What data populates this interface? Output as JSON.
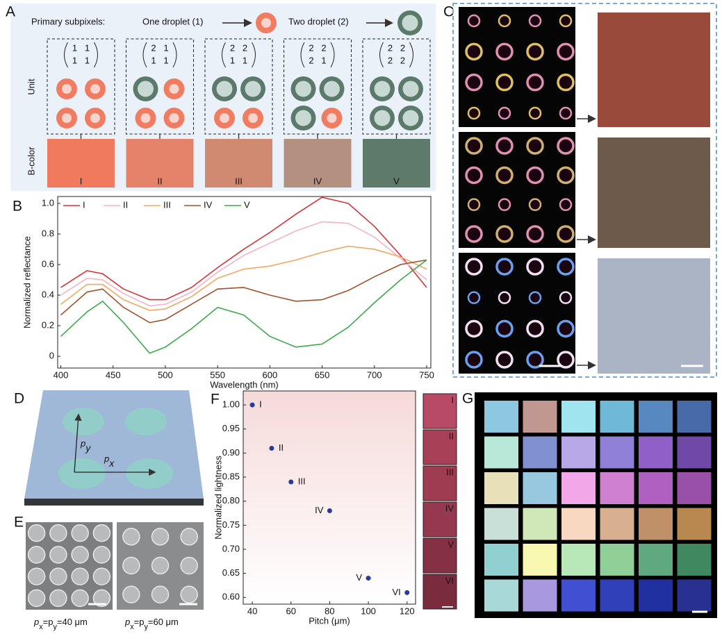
{
  "panel_labels": [
    "A",
    "B",
    "C",
    "D",
    "E",
    "F",
    "G"
  ],
  "panel_a": {
    "legend_title": "Primary subpixels:",
    "one_droplet": "One droplet (1)",
    "two_droplet": "Two droplet (2)",
    "row_labels": [
      "Unit",
      "B-color"
    ],
    "units": [
      {
        "matrix": [
          [
            1,
            1
          ],
          [
            1,
            1
          ]
        ],
        "color_label": "I"
      },
      {
        "matrix": [
          [
            2,
            1
          ],
          [
            1,
            1
          ]
        ],
        "color_label": "II"
      },
      {
        "matrix": [
          [
            2,
            2
          ],
          [
            1,
            1
          ]
        ],
        "color_label": "III"
      },
      {
        "matrix": [
          [
            2,
            2
          ],
          [
            2,
            1
          ]
        ],
        "color_label": "IV"
      },
      {
        "matrix": [
          [
            2,
            2
          ],
          [
            2,
            2
          ]
        ],
        "color_label": "V"
      }
    ]
  },
  "panel_d": {
    "labels": [
      {
        "symbol": "p",
        "sub": "y"
      },
      {
        "symbol": "p",
        "sub": "x"
      }
    ]
  },
  "panel_e": {
    "captions": [
      [
        {
          "text": "p",
          "sub": false
        },
        {
          "text": "x",
          "sub": true
        },
        {
          "text": "=p",
          "sub": false
        },
        {
          "text": "y",
          "sub": true
        },
        {
          "text": "=40 μm",
          "sub": false
        }
      ],
      [
        {
          "text": "p",
          "sub": false
        },
        {
          "text": "x",
          "sub": true
        },
        {
          "text": "=p",
          "sub": false
        },
        {
          "text": "y",
          "sub": true
        },
        {
          "text": "=60 μm",
          "sub": false
        }
      ]
    ]
  },
  "chart_data": [
    {
      "type": "line",
      "x_label": "Wavelength (nm)",
      "y_label": "Normalized reflectance",
      "x": [
        400,
        425,
        440,
        460,
        485,
        500,
        525,
        550,
        575,
        600,
        625,
        650,
        675,
        700,
        725,
        750
      ],
      "series": [
        {
          "name": "I",
          "color": "#d4343a",
          "values": [
            0.45,
            0.56,
            0.54,
            0.44,
            0.37,
            0.37,
            0.45,
            0.58,
            0.7,
            0.81,
            0.93,
            1.04,
            1.0,
            0.85,
            0.66,
            0.45
          ]
        },
        {
          "name": "II",
          "color": "#f2b4c2",
          "values": [
            0.4,
            0.51,
            0.5,
            0.41,
            0.33,
            0.34,
            0.42,
            0.55,
            0.66,
            0.74,
            0.82,
            0.88,
            0.87,
            0.78,
            0.64,
            0.5
          ]
        },
        {
          "name": "III",
          "color": "#f0a860",
          "values": [
            0.34,
            0.47,
            0.47,
            0.37,
            0.3,
            0.31,
            0.39,
            0.51,
            0.57,
            0.59,
            0.63,
            0.68,
            0.72,
            0.7,
            0.65,
            0.57
          ]
        },
        {
          "name": "IV",
          "color": "#a0522d",
          "values": [
            0.27,
            0.42,
            0.44,
            0.32,
            0.22,
            0.24,
            0.34,
            0.44,
            0.45,
            0.4,
            0.36,
            0.37,
            0.43,
            0.52,
            0.6,
            0.63
          ]
        },
        {
          "name": "V",
          "color": "#3aaa4a",
          "values": [
            0.13,
            0.29,
            0.36,
            0.22,
            0.02,
            0.06,
            0.18,
            0.32,
            0.27,
            0.13,
            0.06,
            0.08,
            0.19,
            0.35,
            0.5,
            0.63
          ]
        }
      ],
      "xlim": [
        397,
        754
      ],
      "ylim": [
        -0.077,
        1.045
      ],
      "xticks": [
        400,
        450,
        500,
        550,
        600,
        650,
        700,
        750
      ],
      "yticks": [
        0,
        0.2,
        0.4,
        0.6,
        0.8,
        {
          "value": 1,
          "label": "1.0"
        }
      ],
      "legend": "top-left"
    },
    {
      "type": "scatter",
      "x_label": "Pitch (μm)",
      "y_label": "Normalized lightness",
      "color": "#2a3a9a",
      "x": [
        40,
        50,
        60,
        80,
        100,
        120
      ],
      "values": [
        1.0,
        0.91,
        0.84,
        0.78,
        0.64,
        0.61
      ],
      "point_labels": [
        "I",
        "II",
        "III",
        "IV",
        "V",
        "VI"
      ],
      "xlim": [
        35.3,
        124.4
      ],
      "ylim": [
        0.586,
        1.029
      ],
      "xticks": [
        40,
        60,
        80,
        100,
        120
      ],
      "yticks": [
        {
          "value": 0.6,
          "label": "0.60"
        },
        {
          "value": 0.65,
          "label": "0.65"
        },
        {
          "value": 0.7,
          "label": "0.70"
        },
        0.75,
        {
          "value": 0.8,
          "label": "0.80"
        },
        0.85,
        {
          "value": 0.9,
          "label": "0.90"
        },
        0.95,
        {
          "value": 1,
          "label": "1.00"
        }
      ]
    }
  ]
}
